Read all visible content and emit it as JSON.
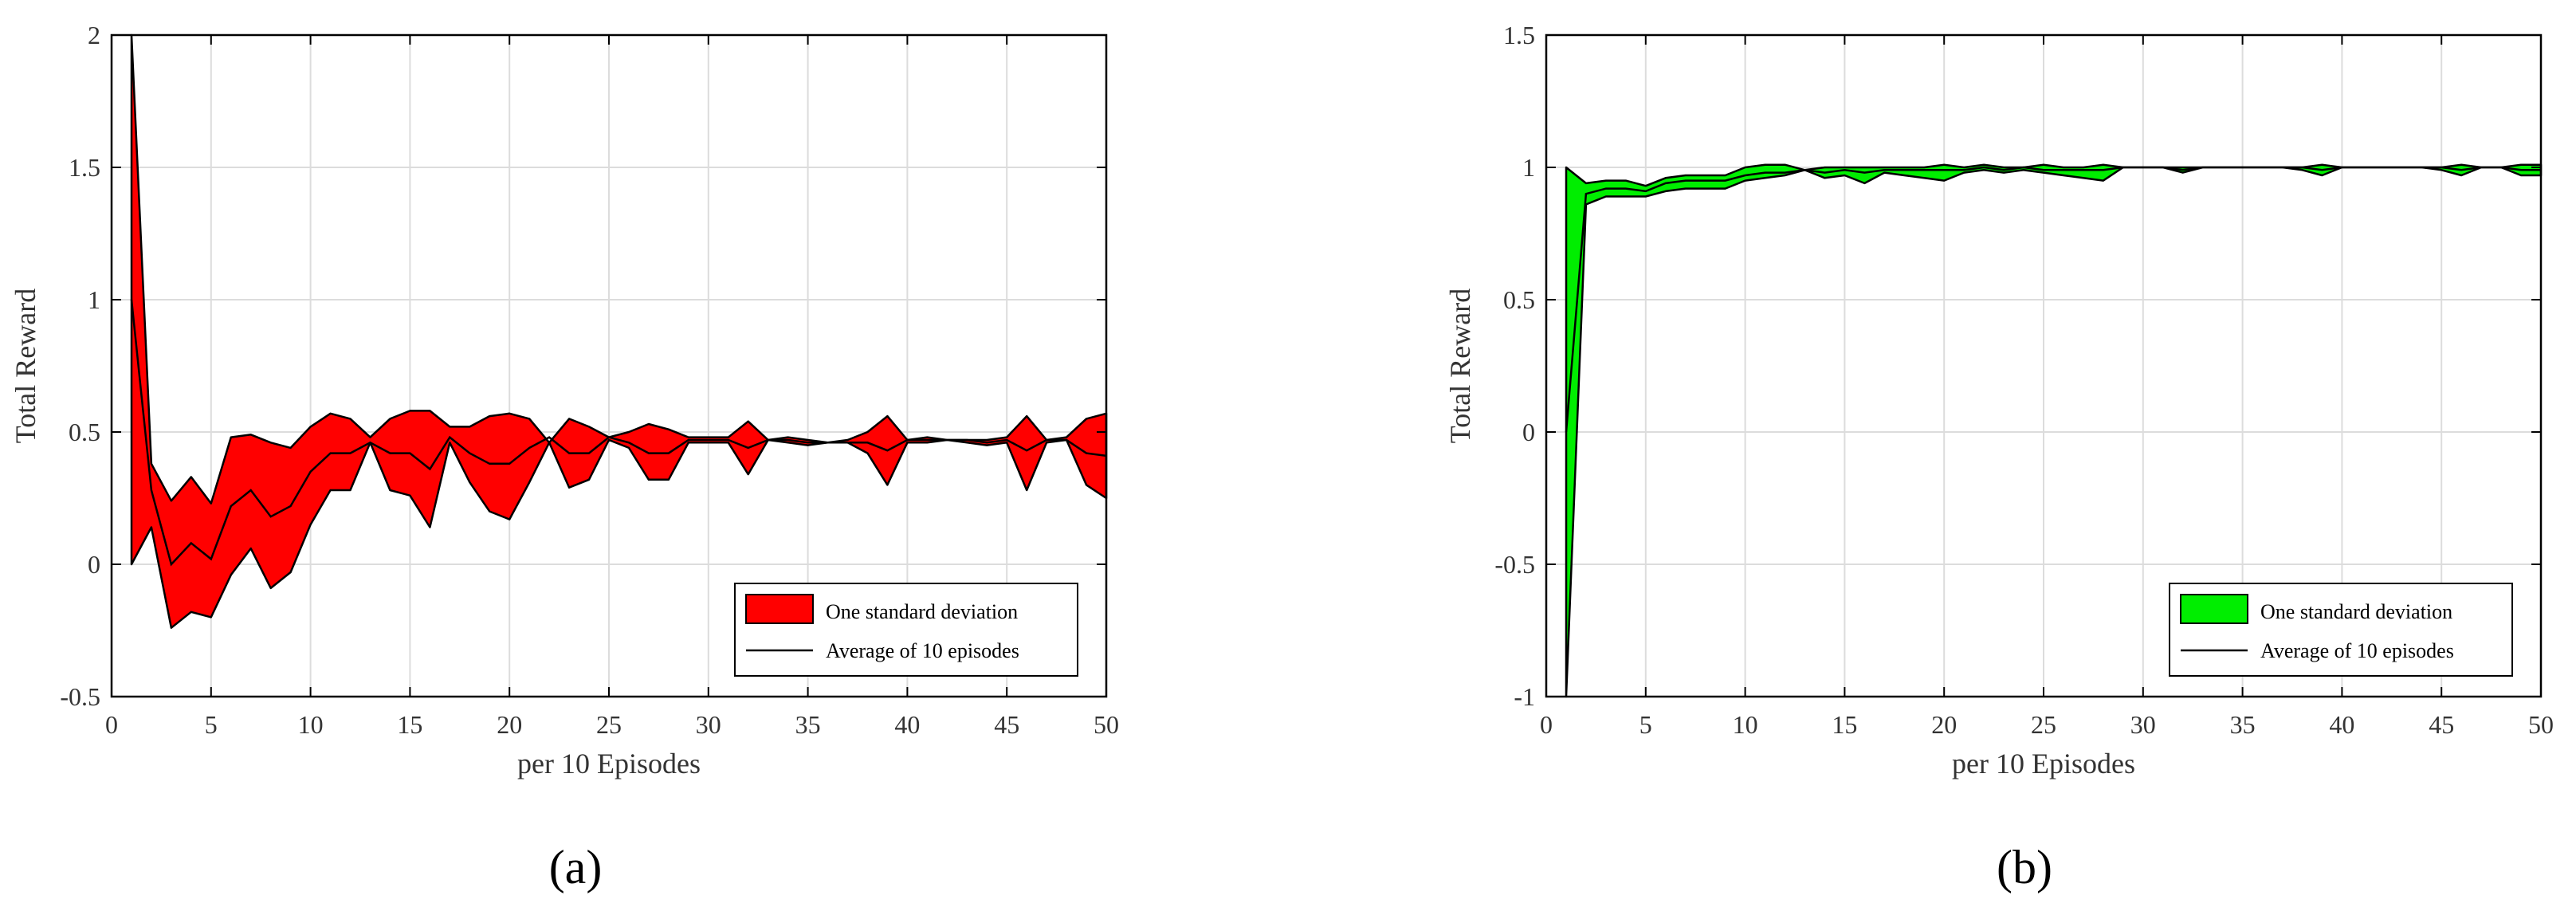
{
  "figure": {
    "panel_labels": [
      "(a)",
      "(b)"
    ]
  },
  "legend": {
    "band_label": "One standard deviation",
    "line_label": "Average of 10 episodes"
  },
  "chart_data": [
    {
      "type": "area",
      "panel": "(a)",
      "xlabel": "per 10 Episodes",
      "ylabel": "Total Reward",
      "xlim": [
        0,
        50
      ],
      "ylim": [
        -0.5,
        2
      ],
      "xticks": [
        0,
        5,
        10,
        15,
        20,
        25,
        30,
        35,
        40,
        45,
        50
      ],
      "yticks": [
        -0.5,
        0,
        0.5,
        1,
        1.5,
        2
      ],
      "ytick_labels": [
        "-0.5",
        "0",
        "0.5",
        "1",
        "1.5",
        "2"
      ],
      "grid": true,
      "legend_position": "bottom-right",
      "band_color": "#ff0000",
      "x": [
        1,
        2,
        3,
        4,
        5,
        6,
        7,
        8,
        9,
        10,
        11,
        12,
        13,
        14,
        15,
        16,
        17,
        18,
        19,
        20,
        21,
        22,
        23,
        24,
        25,
        26,
        27,
        28,
        29,
        30,
        31,
        32,
        33,
        34,
        35,
        36,
        37,
        38,
        39,
        40,
        41,
        42,
        43,
        44,
        45,
        46,
        47,
        48,
        49,
        50
      ],
      "series": [
        {
          "role": "mean",
          "values": [
            1.0,
            0.28,
            0.0,
            0.08,
            0.02,
            0.22,
            0.28,
            0.18,
            0.22,
            0.35,
            0.42,
            0.42,
            0.46,
            0.42,
            0.42,
            0.36,
            0.48,
            0.42,
            0.38,
            0.38,
            0.44,
            0.48,
            0.42,
            0.42,
            0.48,
            0.46,
            0.42,
            0.42,
            0.47,
            0.47,
            0.47,
            0.44,
            0.47,
            0.47,
            0.46,
            0.46,
            0.46,
            0.46,
            0.43,
            0.47,
            0.47,
            0.47,
            0.47,
            0.46,
            0.47,
            0.43,
            0.47,
            0.47,
            0.42,
            0.41
          ]
        },
        {
          "role": "upper",
          "values": [
            2.0,
            0.38,
            0.24,
            0.33,
            0.23,
            0.48,
            0.49,
            0.46,
            0.44,
            0.52,
            0.57,
            0.55,
            0.48,
            0.55,
            0.58,
            0.58,
            0.52,
            0.52,
            0.56,
            0.57,
            0.55,
            0.46,
            0.55,
            0.52,
            0.48,
            0.5,
            0.53,
            0.51,
            0.48,
            0.48,
            0.48,
            0.54,
            0.47,
            0.48,
            0.47,
            0.46,
            0.47,
            0.5,
            0.56,
            0.47,
            0.48,
            0.47,
            0.47,
            0.47,
            0.48,
            0.56,
            0.47,
            0.48,
            0.55,
            0.57
          ]
        },
        {
          "role": "lower",
          "values": [
            0.0,
            0.14,
            -0.24,
            -0.18,
            -0.2,
            -0.04,
            0.06,
            -0.09,
            -0.03,
            0.15,
            0.28,
            0.28,
            0.46,
            0.28,
            0.26,
            0.14,
            0.46,
            0.31,
            0.2,
            0.17,
            0.31,
            0.46,
            0.29,
            0.32,
            0.47,
            0.44,
            0.32,
            0.32,
            0.46,
            0.46,
            0.46,
            0.34,
            0.47,
            0.46,
            0.45,
            0.46,
            0.46,
            0.42,
            0.3,
            0.46,
            0.46,
            0.47,
            0.46,
            0.45,
            0.46,
            0.28,
            0.46,
            0.47,
            0.3,
            0.25
          ]
        }
      ]
    },
    {
      "type": "area",
      "panel": "(b)",
      "xlabel": "per 10 Episodes",
      "ylabel": "Total Reward",
      "xlim": [
        0,
        50
      ],
      "ylim": [
        -1,
        1.5
      ],
      "xticks": [
        0,
        5,
        10,
        15,
        20,
        25,
        30,
        35,
        40,
        45,
        50
      ],
      "yticks": [
        -1,
        -0.5,
        0,
        0.5,
        1,
        1.5
      ],
      "ytick_labels": [
        "-1",
        "-0.5",
        "0",
        "0.5",
        "1",
        "1.5"
      ],
      "grid": true,
      "legend_position": "bottom-right",
      "band_color": "#00ee00",
      "x": [
        1,
        2,
        3,
        4,
        5,
        6,
        7,
        8,
        9,
        10,
        11,
        12,
        13,
        14,
        15,
        16,
        17,
        18,
        19,
        20,
        21,
        22,
        23,
        24,
        25,
        26,
        27,
        28,
        29,
        30,
        31,
        32,
        33,
        34,
        35,
        36,
        37,
        38,
        39,
        40,
        41,
        42,
        43,
        44,
        45,
        46,
        47,
        48,
        49,
        50
      ],
      "series": [
        {
          "role": "mean",
          "values": [
            0.0,
            0.9,
            0.92,
            0.92,
            0.91,
            0.94,
            0.95,
            0.95,
            0.95,
            0.97,
            0.98,
            0.98,
            0.99,
            0.98,
            0.99,
            0.98,
            0.99,
            0.99,
            0.99,
            0.99,
            0.99,
            1.0,
            0.99,
            1.0,
            0.99,
            0.99,
            0.99,
            0.99,
            1.0,
            1.0,
            1.0,
            0.99,
            1.0,
            1.0,
            1.0,
            1.0,
            1.0,
            1.0,
            0.99,
            1.0,
            1.0,
            1.0,
            1.0,
            1.0,
            1.0,
            0.99,
            1.0,
            1.0,
            0.99,
            0.99
          ]
        },
        {
          "role": "upper",
          "values": [
            1.0,
            0.94,
            0.95,
            0.95,
            0.93,
            0.96,
            0.97,
            0.97,
            0.97,
            1.0,
            1.01,
            1.01,
            0.99,
            1.0,
            1.0,
            1.0,
            1.0,
            1.0,
            1.0,
            1.01,
            1.0,
            1.01,
            1.0,
            1.0,
            1.01,
            1.0,
            1.0,
            1.01,
            1.0,
            1.0,
            1.0,
            1.0,
            1.0,
            1.0,
            1.0,
            1.0,
            1.0,
            1.0,
            1.01,
            1.0,
            1.0,
            1.0,
            1.0,
            1.0,
            1.0,
            1.01,
            1.0,
            1.0,
            1.01,
            1.01
          ]
        },
        {
          "role": "lower",
          "values": [
            -1.0,
            0.86,
            0.89,
            0.89,
            0.89,
            0.91,
            0.92,
            0.92,
            0.92,
            0.95,
            0.96,
            0.97,
            0.99,
            0.96,
            0.97,
            0.94,
            0.98,
            0.97,
            0.96,
            0.95,
            0.98,
            0.99,
            0.98,
            0.99,
            0.98,
            0.97,
            0.96,
            0.95,
            1.0,
            1.0,
            1.0,
            0.98,
            1.0,
            1.0,
            1.0,
            1.0,
            1.0,
            0.99,
            0.97,
            1.0,
            1.0,
            1.0,
            1.0,
            1.0,
            0.99,
            0.97,
            1.0,
            1.0,
            0.97,
            0.97
          ]
        }
      ]
    }
  ]
}
